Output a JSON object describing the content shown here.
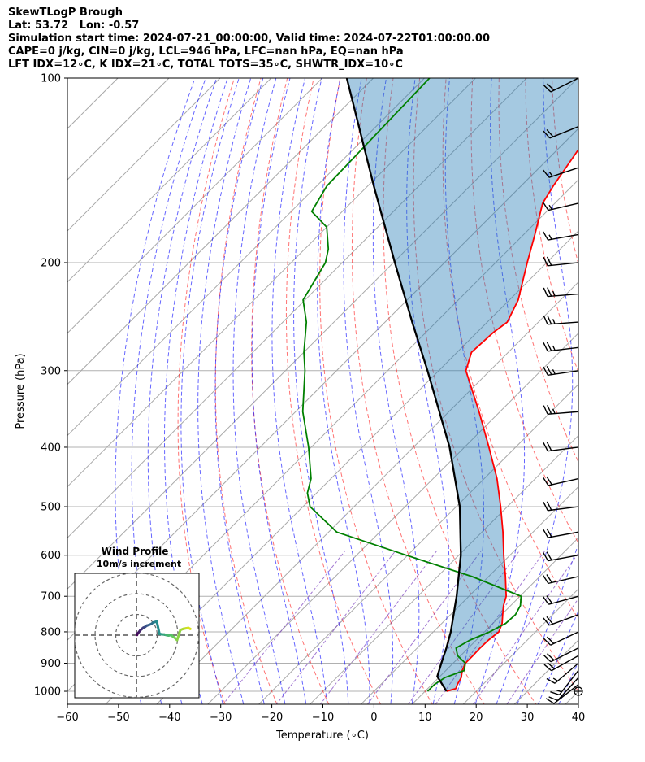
{
  "header": {
    "line1": "SkewTLogP Brough",
    "line2": "Lat: 53.72   Lon: -0.57",
    "line3": "Simulation start time: 2024-07-21_00:00:00, Valid time: 2024-07-22T01:00:00.00",
    "line4": "CAPE=0 j/kg, CIN=0 j/kg, LCL=946 hPa, LFC=nan hPa, EQ=nan hPa",
    "line5": "LFT IDX=12∘C, K IDX=21∘C, TOTAL TOTS=35∘C, SHWTR_IDX=10∘C"
  },
  "chart_data": {
    "type": "skewt-logp",
    "xlabel": "Temperature (∘C)",
    "ylabel": "Pressure (hPa)",
    "xlim": [
      -60,
      40
    ],
    "ylim": [
      1050,
      100
    ],
    "x_ticks": [
      -60,
      -50,
      -40,
      -30,
      -20,
      -10,
      0,
      10,
      20,
      30,
      40
    ],
    "x_tick_labels": [
      "−60",
      "−50",
      "−40",
      "−30",
      "−20",
      "−10",
      "0",
      "10",
      "20",
      "30",
      "40"
    ],
    "y_ticks": [
      1000,
      900,
      800,
      700,
      600,
      500,
      400,
      300,
      200,
      100
    ],
    "grid": true,
    "series": [
      {
        "kind": "temperature",
        "color": "#ff0000",
        "p": [
          1000,
          990,
          975,
          950,
          925,
          900,
          875,
          850,
          825,
          800,
          775,
          750,
          725,
          700,
          650,
          600,
          550,
          500,
          450,
          400,
          350,
          300,
          280,
          260,
          250,
          230,
          200,
          180,
          160,
          150,
          130,
          115,
          108,
          100
        ],
        "t": [
          14.2,
          15.5,
          15.0,
          14.4,
          13.2,
          12.4,
          12.4,
          12.3,
          12.4,
          12.8,
          11.8,
          10.2,
          8.6,
          7.3,
          3.3,
          -1.2,
          -5.9,
          -11.3,
          -17.5,
          -25.2,
          -34.1,
          -44.7,
          -47.2,
          -46.8,
          -46.1,
          -48.3,
          -53.8,
          -57.8,
          -62.4,
          -63.7,
          -66.0,
          -66.6,
          -63.2,
          -61.5
        ]
      },
      {
        "kind": "dewpoint",
        "color": "#008000",
        "p": [
          1000,
          975,
          950,
          925,
          900,
          875,
          850,
          825,
          800,
          775,
          750,
          725,
          700,
          650,
          600,
          550,
          500,
          475,
          450,
          400,
          350,
          300,
          280,
          250,
          230,
          200,
          190,
          175,
          165,
          150,
          100
        ],
        "t": [
          10.5,
          10.5,
          11.2,
          13.6,
          12.4,
          9.4,
          7.6,
          8.8,
          11.0,
          12.5,
          12.7,
          11.9,
          10.2,
          -3.2,
          -20.3,
          -38.4,
          -48.6,
          -51.8,
          -53.9,
          -60.5,
          -68.6,
          -76.2,
          -80.0,
          -85.4,
          -90.4,
          -93.3,
          -95.4,
          -100.0,
          -106.0,
          -108.0,
          -109.0
        ]
      },
      {
        "kind": "parcel",
        "color": "#000000",
        "p": [
          1000,
          946,
          900,
          850,
          800,
          700,
          600,
          500,
          400,
          300,
          250,
          200,
          150,
          100
        ],
        "t": [
          14.2,
          9.5,
          7.7,
          5.7,
          3.4,
          -2.4,
          -9.6,
          -19.3,
          -32.9,
          -52.2,
          -64.7,
          -79.7,
          -98.8,
          -125.2
        ]
      }
    ],
    "wind_barbs": {
      "p": [
        1000,
        975,
        950,
        925,
        900,
        875,
        850,
        800,
        750,
        700,
        650,
        600,
        550,
        500,
        450,
        400,
        350,
        300,
        275,
        250,
        225,
        200,
        180,
        160,
        140,
        120,
        100
      ],
      "u": [
        1,
        9,
        10,
        11,
        14,
        18,
        20,
        21,
        22,
        22,
        22,
        22,
        22,
        24,
        22,
        24,
        25,
        27,
        25,
        27,
        25,
        20,
        17,
        17,
        18,
        20,
        20
      ],
      "v": [
        0,
        7,
        11,
        14,
        12,
        10,
        10,
        10,
        8,
        6,
        5,
        4,
        4,
        3,
        5,
        3,
        2,
        4,
        3,
        2,
        2,
        2,
        3,
        4,
        6,
        8,
        10
      ],
      "units": "kt"
    },
    "hodograph": {
      "title": "Wind Profile",
      "subtitle": "10m/s increment",
      "rings": [
        10,
        20,
        30
      ],
      "u": [
        0.3,
        0.6,
        1.2,
        1.8,
        2.6,
        3.3,
        4.2,
        5.0,
        6.2,
        7.2,
        8.1,
        8.8,
        9.8,
        11.1,
        12.2,
        13.4,
        14.3,
        15.5,
        16.7,
        17.6,
        18.4,
        19.6,
        21.2,
        22.5,
        24.0,
        25.0,
        26.0
      ],
      "v": [
        0.1,
        0.8,
        1.5,
        2.3,
        3.0,
        3.6,
        4.0,
        4.6,
        5.0,
        5.4,
        6.1,
        6.3,
        6.6,
        0.6,
        0.4,
        0.3,
        0.1,
        -0.2,
        0.1,
        -0.7,
        -1.2,
        -2.4,
        2.5,
        3.0,
        3.3,
        3.5,
        3.0
      ]
    }
  }
}
